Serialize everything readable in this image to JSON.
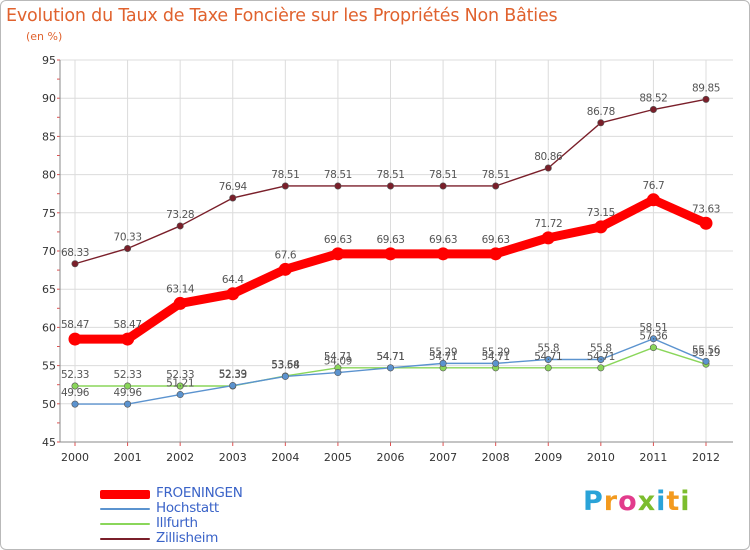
{
  "title": "Evolution du Taux de Taxe Foncière sur les Propriétés Non Bâties",
  "unit_label": "(en %)",
  "brand": {
    "text": "Proxiti",
    "letters": [
      "P",
      "r",
      "o",
      "x",
      "i",
      "t",
      "i"
    ],
    "letter_colors": [
      "#2aa3d8",
      "#f39a1e",
      "#e23c8c",
      "#7cbd2e",
      "#2aa3d8",
      "#f39a1e",
      "#7cbd2e"
    ]
  },
  "chart_data": {
    "type": "line",
    "title": "Evolution du Taux de Taxe Foncière sur les Propriétés Non Bâties",
    "ylabel": "(en %)",
    "xlabel": "",
    "categories": [
      "2000",
      "2001",
      "2002",
      "2003",
      "2004",
      "2005",
      "2006",
      "2007",
      "2008",
      "2009",
      "2010",
      "2011",
      "2012"
    ],
    "ylim": [
      45,
      95
    ],
    "yticks": [
      45,
      50,
      55,
      60,
      65,
      70,
      75,
      80,
      85,
      90,
      95
    ],
    "grid": true,
    "legend_position": "bottom-left",
    "series": [
      {
        "name": "FROENINGEN",
        "color": "#ff0000",
        "emphasis": true,
        "values": [
          58.47,
          58.47,
          63.14,
          64.4,
          67.6,
          69.63,
          69.63,
          69.63,
          69.63,
          71.72,
          73.15,
          76.7,
          73.63
        ],
        "labels": [
          "58.47",
          "58.47",
          "63.14",
          "64.4",
          "67.6",
          "69.63",
          "69.63",
          "69.63",
          "69.63",
          "71.72",
          "73.15",
          "76.7",
          "73.63"
        ]
      },
      {
        "name": "Hochstatt",
        "color": "#5b93cf",
        "emphasis": false,
        "values": [
          49.96,
          49.96,
          51.21,
          52.39,
          53.58,
          54.09,
          54.71,
          55.29,
          55.29,
          55.8,
          55.8,
          58.51,
          55.56
        ],
        "labels": [
          "49.96",
          "49.96",
          "51.21",
          "52.39",
          "53.58",
          "54.09",
          "54.71",
          "55.29",
          "55.29",
          "55.8",
          "55.8",
          "58.51",
          "55.56"
        ]
      },
      {
        "name": "Illfurth",
        "color": "#8ad65a",
        "emphasis": false,
        "values": [
          52.33,
          52.33,
          52.33,
          52.33,
          53.64,
          54.71,
          54.71,
          54.71,
          54.71,
          54.71,
          54.71,
          57.36,
          55.19
        ],
        "labels": [
          "52.33",
          "52.33",
          "52.33",
          "52.33",
          "53.64",
          "54.71",
          "54.71",
          "54.71",
          "54.71",
          "54.71",
          "54.71",
          "57.36",
          "55.19"
        ]
      },
      {
        "name": "Zillisheim",
        "color": "#7a1f2a",
        "emphasis": false,
        "values": [
          68.33,
          70.33,
          73.28,
          76.94,
          78.51,
          78.51,
          78.51,
          78.51,
          78.51,
          80.86,
          86.78,
          88.52,
          89.85
        ],
        "labels": [
          "68.33",
          "70.33",
          "73.28",
          "76.94",
          "78.51",
          "78.51",
          "78.51",
          "78.51",
          "78.51",
          "80.86",
          "86.78",
          "88.52",
          "89.85"
        ]
      }
    ]
  }
}
